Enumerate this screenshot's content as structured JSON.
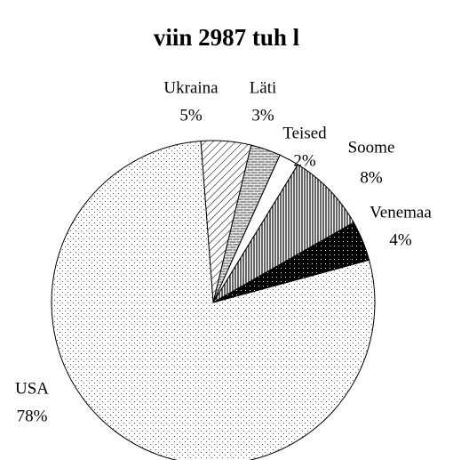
{
  "chart_data": {
    "type": "pie",
    "title": "viin 2987 tuh l",
    "categories": [
      "Ukraina",
      "Läti",
      "Teised",
      "Soome",
      "Venemaa",
      "USA"
    ],
    "values": [
      5,
      3,
      2,
      8,
      4,
      78
    ],
    "value_labels": [
      "5%",
      "3%",
      "2%",
      "8%",
      "4%",
      "78%"
    ]
  }
}
